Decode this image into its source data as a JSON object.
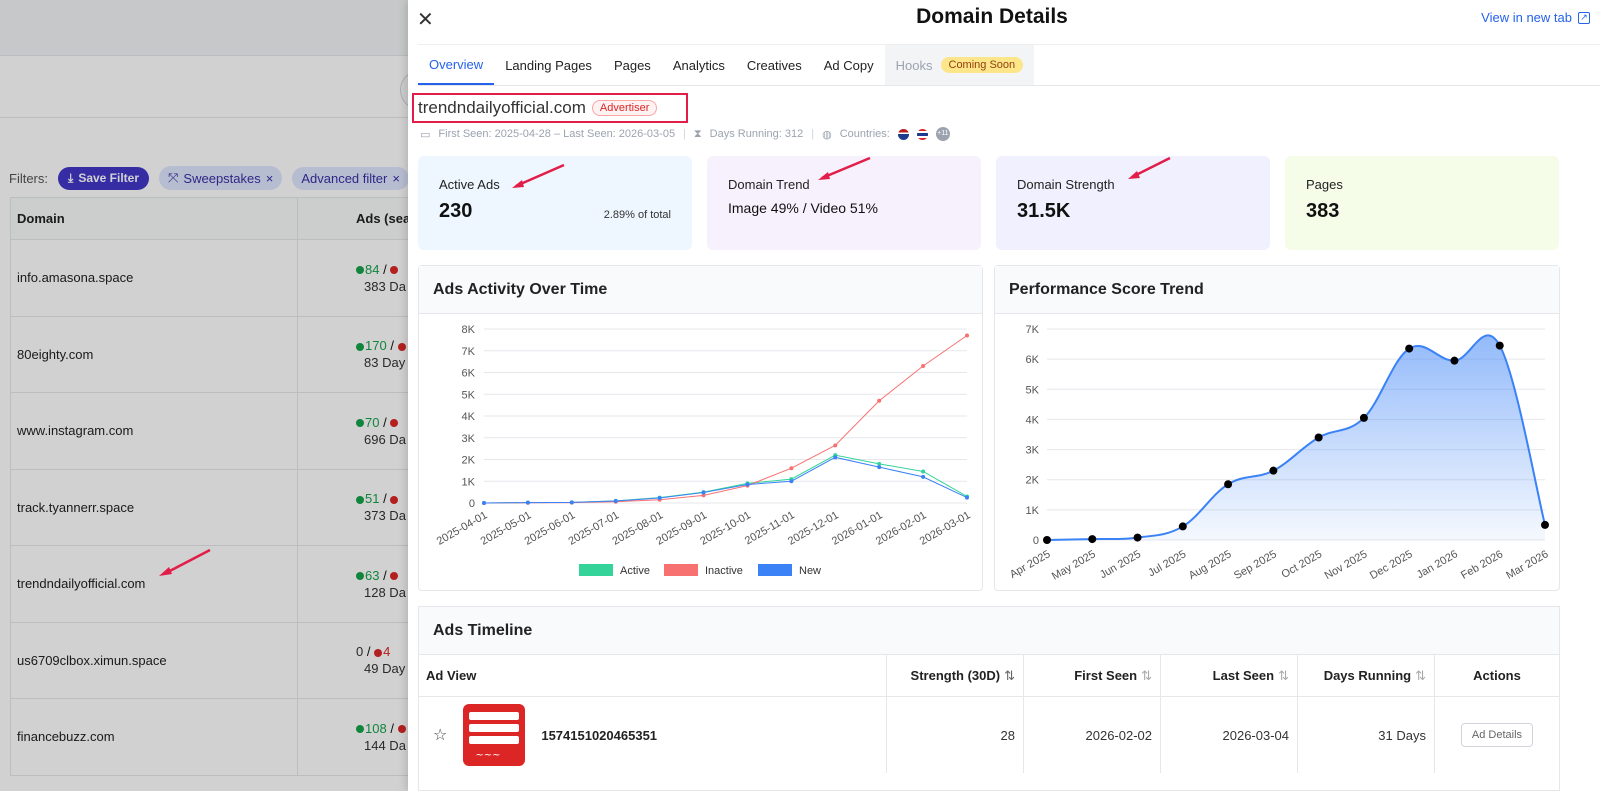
{
  "filters": {
    "label": "Filters:",
    "save_label": "Save Filter",
    "chip1": "Sweepstakes",
    "chip2": "Advanced filter"
  },
  "left_table": {
    "col_domain": "Domain",
    "col_ads": "Ads (sea",
    "rows": [
      {
        "domain": "info.amasona.space",
        "active": "84",
        "inactive": "",
        "days": "383 Da"
      },
      {
        "domain": "80eighty.com",
        "active": "170",
        "inactive": "",
        "days": "83 Day"
      },
      {
        "domain": "www.instagram.com",
        "active": "70",
        "inactive": "",
        "days": "696 Da"
      },
      {
        "domain": "track.tyannerr.space",
        "active": "51",
        "inactive": "",
        "days": "373 Da"
      },
      {
        "domain": "trendndailyofficial.com",
        "active": "63",
        "inactive": "",
        "days": "128 Da"
      },
      {
        "domain": "us6709clbox.ximun.space",
        "active": "0",
        "inactive": "4",
        "days": "49 Day"
      },
      {
        "domain": "financebuzz.com",
        "active": "108",
        "inactive": "",
        "days": "144 Da"
      }
    ]
  },
  "panel": {
    "title": "Domain Details",
    "view_new_tab": "View in new tab",
    "tabs": [
      "Overview",
      "Landing Pages",
      "Pages",
      "Analytics",
      "Creatives",
      "Ad Copy"
    ],
    "hooks_tab": "Hooks",
    "coming_soon": "Coming Soon",
    "domain": "trendndailyofficial.com",
    "badge": "Advertiser",
    "seen": "First Seen: 2025-04-28 – Last Seen: 2026-03-05",
    "days_running": "Days Running: 312",
    "countries": "Countries:",
    "more_countries": "+11"
  },
  "cards": {
    "active_ads": {
      "label": "Active Ads",
      "value": "230",
      "pct": "2.89% of total"
    },
    "domain_trend": {
      "label": "Domain Trend",
      "value": "Image 49% / Video 51%"
    },
    "domain_strength": {
      "label": "Domain Strength",
      "value": "31.5K"
    },
    "pages": {
      "label": "Pages",
      "value": "383"
    }
  },
  "charts": {
    "activity_title": "Ads Activity Over Time",
    "perf_title": "Performance Score Trend"
  },
  "chart_data": [
    {
      "type": "line",
      "title": "Ads Activity Over Time",
      "categories": [
        "2025-04-01",
        "2025-05-01",
        "2025-06-01",
        "2025-07-01",
        "2025-08-01",
        "2025-09-01",
        "2025-10-01",
        "2025-11-01",
        "2025-12-01",
        "2026-01-01",
        "2026-02-01",
        "2026-03-01"
      ],
      "yticks": [
        "0",
        "1K",
        "2K",
        "3K",
        "4K",
        "5K",
        "6K",
        "7K",
        "8K"
      ],
      "ylim": [
        0,
        8000
      ],
      "legend_position": "bottom",
      "series": [
        {
          "name": "Active",
          "color": "#34d399",
          "values": [
            0,
            20,
            30,
            100,
            250,
            500,
            900,
            1100,
            2200,
            1800,
            1450,
            300
          ]
        },
        {
          "name": "Inactive",
          "color": "#f87171",
          "values": [
            0,
            10,
            20,
            60,
            150,
            350,
            800,
            1600,
            2650,
            4700,
            6300,
            7700
          ]
        },
        {
          "name": "New",
          "color": "#3b82f6",
          "values": [
            0,
            20,
            30,
            90,
            230,
            480,
            850,
            1000,
            2100,
            1650,
            1200,
            250
          ]
        }
      ]
    },
    {
      "type": "area",
      "title": "Performance Score Trend",
      "categories": [
        "Apr 2025",
        "May 2025",
        "Jun 2025",
        "Jul 2025",
        "Aug 2025",
        "Sep 2025",
        "Oct 2025",
        "Nov 2025",
        "Dec 2025",
        "Jan 2026",
        "Feb 2026",
        "Mar 2026"
      ],
      "yticks": [
        "0",
        "1K",
        "2K",
        "3K",
        "4K",
        "5K",
        "6K",
        "7K"
      ],
      "ylim": [
        0,
        7000
      ],
      "color": "#3b82f6",
      "values": [
        0,
        30,
        80,
        450,
        1850,
        2300,
        3400,
        4050,
        6350,
        5950,
        6450,
        500
      ]
    }
  ],
  "timeline": {
    "title": "Ads Timeline",
    "cols": {
      "ad_view": "Ad View",
      "strength": "Strength (30D)",
      "first_seen": "First Seen",
      "last_seen": "Last Seen",
      "days_running": "Days Running",
      "actions": "Actions"
    },
    "row": {
      "id": "1574151020465351",
      "strength": "28",
      "first_seen": "2026-02-02",
      "last_seen": "2026-03-04",
      "days_running": "31 Days",
      "action": "Ad Details"
    }
  },
  "colors": {
    "accent": "#2563eb",
    "highlight_box": "#e11d48",
    "save_button": "#4338ca"
  }
}
